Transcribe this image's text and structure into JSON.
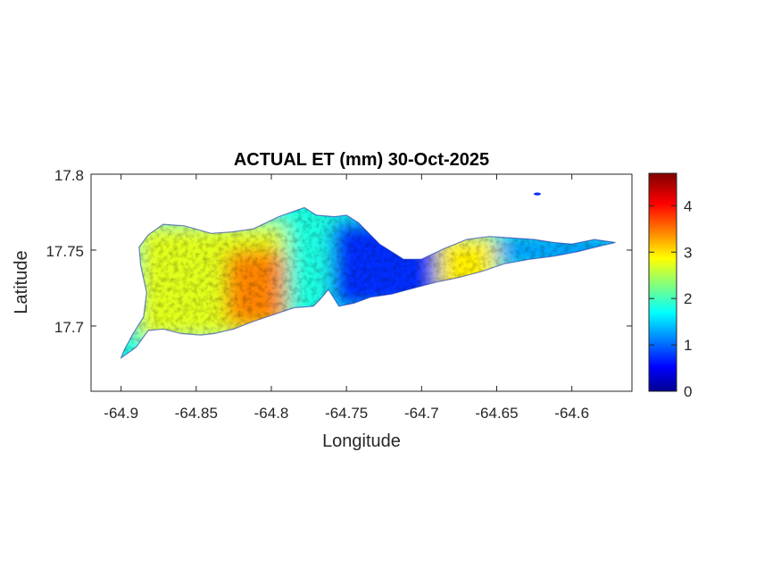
{
  "figure": {
    "title": "ACTUAL ET (mm) 30-Oct-2025",
    "xlabel": "Longitude",
    "ylabel": "Latitude",
    "xticks": [
      -64.9,
      -64.85,
      -64.8,
      -64.75,
      -64.7,
      -64.65,
      -64.6
    ],
    "xtick_labels": [
      "-64.9",
      "-64.85",
      "-64.8",
      "-64.75",
      "-64.7",
      "-64.65",
      "-64.6"
    ],
    "yticks": [
      17.7,
      17.75,
      17.8
    ],
    "ytick_labels": [
      "17.7",
      "17.75",
      "17.8"
    ],
    "xlim": [
      -64.92,
      -64.56
    ],
    "ylim": [
      17.657,
      17.8
    ]
  },
  "colorbar": {
    "range": [
      0,
      4.7
    ],
    "ticks": [
      0,
      1,
      2,
      3,
      4
    ],
    "tick_labels": [
      "0",
      "1",
      "2",
      "3",
      "4"
    ],
    "colormap": "jet"
  },
  "map_data": {
    "type": "heatmap",
    "island_outline_lonlat": [
      [
        -64.9,
        17.679
      ],
      [
        -64.89,
        17.686
      ],
      [
        -64.882,
        17.697
      ],
      [
        -64.872,
        17.698
      ],
      [
        -64.86,
        17.695
      ],
      [
        -64.847,
        17.694
      ],
      [
        -64.838,
        17.695
      ],
      [
        -64.825,
        17.698
      ],
      [
        -64.812,
        17.703
      ],
      [
        -64.797,
        17.708
      ],
      [
        -64.785,
        17.712
      ],
      [
        -64.772,
        17.713
      ],
      [
        -64.768,
        17.717
      ],
      [
        -64.762,
        17.724
      ],
      [
        -64.755,
        17.713
      ],
      [
        -64.745,
        17.715
      ],
      [
        -64.734,
        17.719
      ],
      [
        -64.72,
        17.721
      ],
      [
        -64.705,
        17.725
      ],
      [
        -64.69,
        17.729
      ],
      [
        -64.675,
        17.732
      ],
      [
        -64.66,
        17.736
      ],
      [
        -64.645,
        17.741
      ],
      [
        -64.628,
        17.744
      ],
      [
        -64.612,
        17.746
      ],
      [
        -64.596,
        17.749
      ],
      [
        -64.58,
        17.753
      ],
      [
        -64.571,
        17.755
      ],
      [
        -64.585,
        17.757
      ],
      [
        -64.6,
        17.754
      ],
      [
        -64.612,
        17.755
      ],
      [
        -64.625,
        17.757
      ],
      [
        -64.64,
        17.758
      ],
      [
        -64.655,
        17.759
      ],
      [
        -64.67,
        17.757
      ],
      [
        -64.685,
        17.751
      ],
      [
        -64.7,
        17.744
      ],
      [
        -64.712,
        17.744
      ],
      [
        -64.728,
        17.754
      ],
      [
        -64.742,
        17.768
      ],
      [
        -64.75,
        17.773
      ],
      [
        -64.758,
        17.772
      ],
      [
        -64.77,
        17.773
      ],
      [
        -64.778,
        17.778
      ],
      [
        -64.795,
        17.772
      ],
      [
        -64.812,
        17.764
      ],
      [
        -64.826,
        17.762
      ],
      [
        -64.84,
        17.761
      ],
      [
        -64.858,
        17.766
      ],
      [
        -64.872,
        17.767
      ],
      [
        -64.882,
        17.76
      ],
      [
        -64.888,
        17.752
      ],
      [
        -64.887,
        17.74
      ],
      [
        -64.883,
        17.722
      ],
      [
        -64.885,
        17.706
      ],
      [
        -64.892,
        17.695
      ],
      [
        -64.898,
        17.684
      ]
    ],
    "et_regions": [
      {
        "lon": [
          -64.89,
          -64.79
        ],
        "lat": [
          17.69,
          17.768
        ],
        "value_mm": 2.8
      },
      {
        "lon": [
          -64.83,
          -64.79
        ],
        "lat": [
          17.7,
          17.75
        ],
        "value_mm": 3.5
      },
      {
        "lon": [
          -64.79,
          -64.76
        ],
        "lat": [
          17.7,
          17.78
        ],
        "value_mm": 1.9
      },
      {
        "lon": [
          -64.76,
          -64.69
        ],
        "lat": [
          17.71,
          17.77
        ],
        "value_mm": 0.8
      },
      {
        "lon": [
          -64.69,
          -64.65
        ],
        "lat": [
          17.72,
          17.76
        ],
        "value_mm": 3.0
      },
      {
        "lon": [
          -64.65,
          -64.57
        ],
        "lat": [
          17.74,
          17.76
        ],
        "value_mm": 1.3
      }
    ],
    "islet_lonlat": [
      -64.623,
      17.787
    ]
  }
}
